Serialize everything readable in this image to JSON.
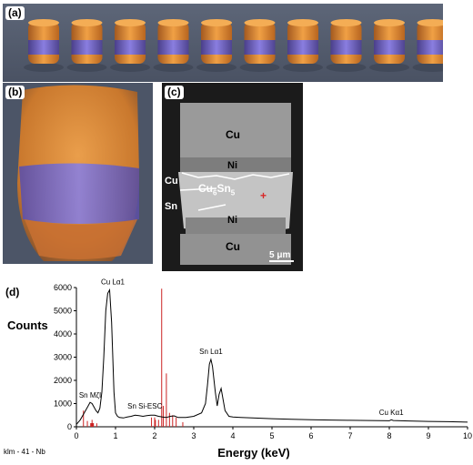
{
  "panel_labels": {
    "a": "(a)",
    "b": "(b)",
    "c": "(c)",
    "d": "(d)"
  },
  "sem": {
    "cu_top": "Cu",
    "ni_top": "Ni",
    "cu_left": "Cu",
    "phase_base": "Cu",
    "phase_sub1": "6",
    "phase_mid": "Sn",
    "phase_sub2": "5",
    "sn_left": "Sn",
    "ni_bottom": "Ni",
    "cu_bottom": "Cu",
    "scale_bar": "5 μm"
  },
  "colors": {
    "spectrum_line": "#000000",
    "marker_line": "#cc2222",
    "cylinder_orange": "#e08a35",
    "cylinder_purple": "#7b6fd0"
  },
  "chart_data": {
    "type": "line",
    "title": "",
    "xlabel": "Energy (keV)",
    "ylabel": "Counts",
    "xlim": [
      0,
      10
    ],
    "ylim": [
      0,
      6000
    ],
    "x_ticks": [
      "0",
      "1",
      "2",
      "3",
      "4",
      "5",
      "6",
      "7",
      "8",
      "9",
      "10"
    ],
    "y_ticks": [
      "0",
      "1000",
      "2000",
      "3000",
      "4000",
      "5000",
      "6000"
    ],
    "corner_label": "klm - 41 - Nb",
    "series": [
      {
        "x": [
          0.0,
          0.1,
          0.2,
          0.3,
          0.35,
          0.4,
          0.45,
          0.5,
          0.55,
          0.6,
          0.65,
          0.7,
          0.75,
          0.8,
          0.85,
          0.9,
          0.93,
          0.96,
          1.0,
          1.05,
          1.1,
          1.2,
          1.3,
          1.4,
          1.5,
          1.6,
          1.7,
          1.8,
          1.9,
          2.0,
          2.1,
          2.2,
          2.3,
          2.4,
          2.5,
          2.6,
          2.8,
          3.0,
          3.2,
          3.3,
          3.35,
          3.4,
          3.44,
          3.48,
          3.55,
          3.6,
          3.65,
          3.7,
          3.8,
          3.9,
          4.0,
          4.2,
          4.5,
          5.0,
          5.5,
          6.0,
          6.5,
          7.0,
          7.5,
          8.0,
          8.05,
          8.1,
          8.5,
          9.0,
          9.5,
          10.0
        ],
        "y": [
          100,
          300,
          600,
          900,
          1050,
          1000,
          850,
          700,
          600,
          800,
          1500,
          3000,
          5000,
          5750,
          5900,
          4500,
          3000,
          1500,
          600,
          450,
          400,
          380,
          420,
          450,
          500,
          480,
          450,
          480,
          500,
          500,
          450,
          420,
          400,
          450,
          470,
          400,
          400,
          450,
          600,
          1000,
          1800,
          2700,
          2900,
          2600,
          1500,
          900,
          1400,
          1650,
          700,
          450,
          420,
          400,
          380,
          350,
          320,
          300,
          290,
          280,
          270,
          260,
          300,
          270,
          250,
          230,
          220,
          200
        ]
      }
    ],
    "markers": {
      "x": [
        0.18,
        0.28,
        0.4,
        0.52,
        1.92,
        2.0,
        2.02,
        2.1,
        2.18,
        2.22,
        2.3,
        2.38,
        2.46,
        2.55,
        2.72
      ],
      "y": [
        700,
        250,
        300,
        150,
        400,
        400,
        300,
        300,
        5950,
        900,
        2300,
        600,
        500,
        400,
        200
      ]
    },
    "peak_labels": [
      {
        "text": "Cu Lα1",
        "x": 0.93,
        "y": 6050
      },
      {
        "text": "Sn Lα1",
        "x": 3.44,
        "y": 3050
      },
      {
        "text": "Sn MζI",
        "x": 0.35,
        "y": 1180
      },
      {
        "text": "Sn Si-ESC",
        "x": 1.75,
        "y": 700
      },
      {
        "text": "Cu Kα1",
        "x": 8.05,
        "y": 430
      }
    ]
  }
}
